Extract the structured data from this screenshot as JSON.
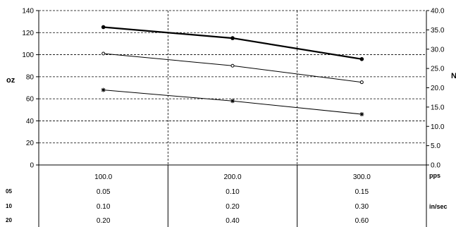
{
  "chart_data": {
    "type": "line",
    "y_left": {
      "label": "oz",
      "ticks": [
        "0",
        "20",
        "40",
        "60",
        "80",
        "100",
        "120",
        "140"
      ],
      "lim": [
        0,
        140
      ]
    },
    "y_right": {
      "label": "N",
      "ticks": [
        "0.0",
        "5.0",
        "10.0",
        "15.0",
        "20.0",
        "25.0",
        "30.0",
        "35.0",
        "40.0"
      ],
      "lim": [
        0,
        40
      ]
    },
    "x": {
      "categories": [
        "100.0",
        "200.0",
        "300.0"
      ],
      "unit": "pps"
    },
    "series": [
      {
        "marker": "dot",
        "bold": true,
        "values": [
          125,
          115,
          96
        ]
      },
      {
        "marker": "circle",
        "bold": false,
        "values": [
          101,
          90,
          75
        ]
      },
      {
        "marker": "star",
        "bold": false,
        "values": [
          68,
          58,
          46
        ]
      }
    ],
    "table": {
      "rows": [
        {
          "label": "05",
          "values": [
            "0.05",
            "0.10",
            "0.15"
          ],
          "unit": ""
        },
        {
          "label": "10",
          "values": [
            "0.10",
            "0.20",
            "0.30"
          ],
          "unit": "in/sec"
        },
        {
          "label": "20",
          "values": [
            "0.20",
            "0.40",
            "0.60"
          ],
          "unit": ""
        }
      ]
    },
    "grid": true,
    "gridline_style": "dashed"
  }
}
